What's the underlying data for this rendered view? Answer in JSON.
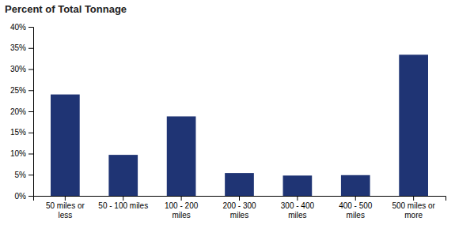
{
  "chart_data": {
    "type": "bar",
    "title": "Percent of Total Tonnage",
    "categories": [
      "50 miles or\nless",
      "50 - 100 miles",
      "100 - 200\nmiles",
      "200 - 300\nmiles",
      "300 - 400\nmiles",
      "400 - 500\nmiles",
      "500 miles or\nmore"
    ],
    "values": [
      24.0,
      9.7,
      18.8,
      5.4,
      4.8,
      4.9,
      33.4
    ],
    "color": "#1F3474",
    "ylim": [
      0,
      40
    ],
    "yticks": [
      {
        "value": 0,
        "label": "0%"
      },
      {
        "value": 5,
        "label": "5%"
      },
      {
        "value": 10,
        "label": "10%"
      },
      {
        "value": 15,
        "label": "15%"
      },
      {
        "value": 20,
        "label": "20%"
      },
      {
        "value": 25,
        "label": "25%"
      },
      {
        "value": 30,
        "label": "30%"
      },
      {
        "value": 35,
        "label": "35%"
      },
      {
        "value": 40,
        "label": "40%"
      }
    ],
    "grid": false
  }
}
